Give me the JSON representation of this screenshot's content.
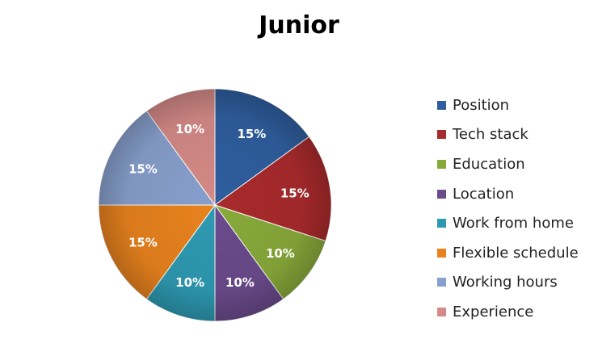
{
  "chart_data": {
    "type": "pie",
    "title": "Junior",
    "categories": [
      "Position",
      "Tech stack",
      "Education",
      "Location",
      "Work from home",
      "Flexible schedule",
      "Working hours",
      "Experience"
    ],
    "values": [
      15,
      15,
      10,
      10,
      10,
      15,
      15,
      10
    ],
    "data_labels": [
      "15%",
      "15%",
      "10%",
      "10%",
      "10%",
      "15%",
      "15%",
      "10%"
    ],
    "colors": [
      "#2F5E9E",
      "#A92A2C",
      "#88AA3A",
      "#6B4B8C",
      "#2E9AB2",
      "#E8821E",
      "#879FCC",
      "#D48A87"
    ],
    "legend_position": "right"
  }
}
